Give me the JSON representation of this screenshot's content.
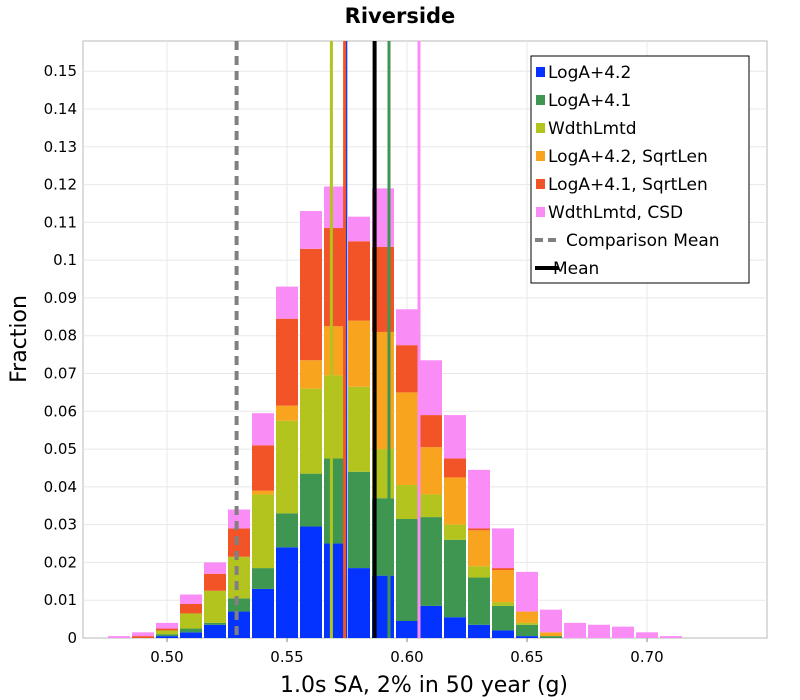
{
  "chart_data": {
    "type": "bar",
    "stacked": true,
    "title": "Riverside",
    "xlabel": "1.0s SA, 2% in 50 year (g)",
    "ylabel": "Fraction",
    "xlim": [
      0.465,
      0.75
    ],
    "ylim": [
      0,
      0.158
    ],
    "bin_width": 0.01,
    "xticks": [
      "0.50",
      "0.55",
      "0.60",
      "0.65",
      "0.70"
    ],
    "yticks": [
      "0",
      "0.01",
      "0.02",
      "0.03",
      "0.04",
      "0.05",
      "0.06",
      "0.07",
      "0.08",
      "0.09",
      "0.1",
      "0.11",
      "0.12",
      "0.13",
      "0.14",
      "0.15"
    ],
    "grid": true,
    "legend_position": "top-right",
    "bins": [
      0.47,
      0.48,
      0.49,
      0.5,
      0.51,
      0.52,
      0.53,
      0.54,
      0.55,
      0.56,
      0.57,
      0.58,
      0.59,
      0.6,
      0.61,
      0.62,
      0.63,
      0.64,
      0.65,
      0.66,
      0.67,
      0.68,
      0.69,
      0.7,
      0.71
    ],
    "series": [
      {
        "name": "LogA+4.2",
        "color": "#0433ff",
        "values": [
          0,
          0,
          0,
          0.0005,
          0.0015,
          0.0035,
          0.007,
          0.013,
          0.024,
          0.0295,
          0.025,
          0.0185,
          0.0165,
          0.0045,
          0.0085,
          0.0055,
          0.0035,
          0.002,
          0.0005,
          0,
          0,
          0,
          0,
          0,
          0
        ]
      },
      {
        "name": "LogA+4.1",
        "color": "#3e9650",
        "values": [
          0,
          0,
          0,
          0.0005,
          0.001,
          0.0005,
          0.0035,
          0.0055,
          0.009,
          0.014,
          0.0225,
          0.0255,
          0.0205,
          0.027,
          0.0235,
          0.0205,
          0.0125,
          0.0065,
          0.003,
          0.0005,
          0,
          0,
          0,
          0,
          0
        ]
      },
      {
        "name": "WdthLmtd",
        "color": "#b2c41d",
        "values": [
          0,
          0,
          0,
          0.001,
          0.004,
          0.0085,
          0.011,
          0.0195,
          0.0245,
          0.0225,
          0.022,
          0.0225,
          0.013,
          0.009,
          0.006,
          0.004,
          0.003,
          0.001,
          0.0005,
          0,
          0,
          0,
          0,
          0,
          0
        ]
      },
      {
        "name": "LogA+4.2, SqrtLen",
        "color": "#f9a41f",
        "values": [
          0,
          0,
          0,
          0,
          0,
          0,
          0,
          0.001,
          0.004,
          0.0075,
          0.013,
          0.0175,
          0.031,
          0.0245,
          0.0125,
          0.0125,
          0.0095,
          0.0085,
          0.003,
          0.001,
          0,
          0,
          0,
          0,
          0
        ]
      },
      {
        "name": "LogA+4.1, SqrtLen",
        "color": "#f25428",
        "values": [
          0,
          0,
          0.0005,
          0.0005,
          0.0025,
          0.0045,
          0.0075,
          0.012,
          0.023,
          0.0295,
          0.026,
          0.021,
          0.0225,
          0.0125,
          0.0085,
          0.005,
          0.0005,
          0.0005,
          0,
          0,
          0,
          0,
          0,
          0,
          0
        ]
      },
      {
        "name": "WdthLmtd, CSD",
        "color": "#fa8cf5",
        "values": [
          0,
          0.0005,
          0.001,
          0.0015,
          0.0025,
          0.003,
          0.005,
          0.0085,
          0.0085,
          0.01,
          0.011,
          0.0065,
          0.0155,
          0.0095,
          0.0145,
          0.0115,
          0.0155,
          0.0105,
          0.0105,
          0.006,
          0.004,
          0.0035,
          0.003,
          0.0015,
          0.0005
        ]
      }
    ],
    "reference_lines": [
      {
        "name": "Comparison Mean",
        "x": 0.529,
        "color": "#808080",
        "style": "dashed"
      },
      {
        "name": "Mean",
        "x": 0.5865,
        "color": "#000000",
        "style": "solid"
      }
    ],
    "series_means": [
      {
        "series": "LogA+4.2",
        "x": 0.5745,
        "color": "#0433ff"
      },
      {
        "series": "LogA+4.1",
        "x": 0.5925,
        "color": "#3e9650"
      },
      {
        "series": "WdthLmtd",
        "x": 0.5685,
        "color": "#b2c41d"
      },
      {
        "series": "LogA+4.2, SqrtLen",
        "x": 0.5865,
        "color": "#f9a41f"
      },
      {
        "series": "LogA+4.1, SqrtLen",
        "x": 0.574,
        "color": "#f25428"
      },
      {
        "series": "WdthLmtd, CSD",
        "x": 0.605,
        "color": "#fa8cf5"
      }
    ]
  }
}
